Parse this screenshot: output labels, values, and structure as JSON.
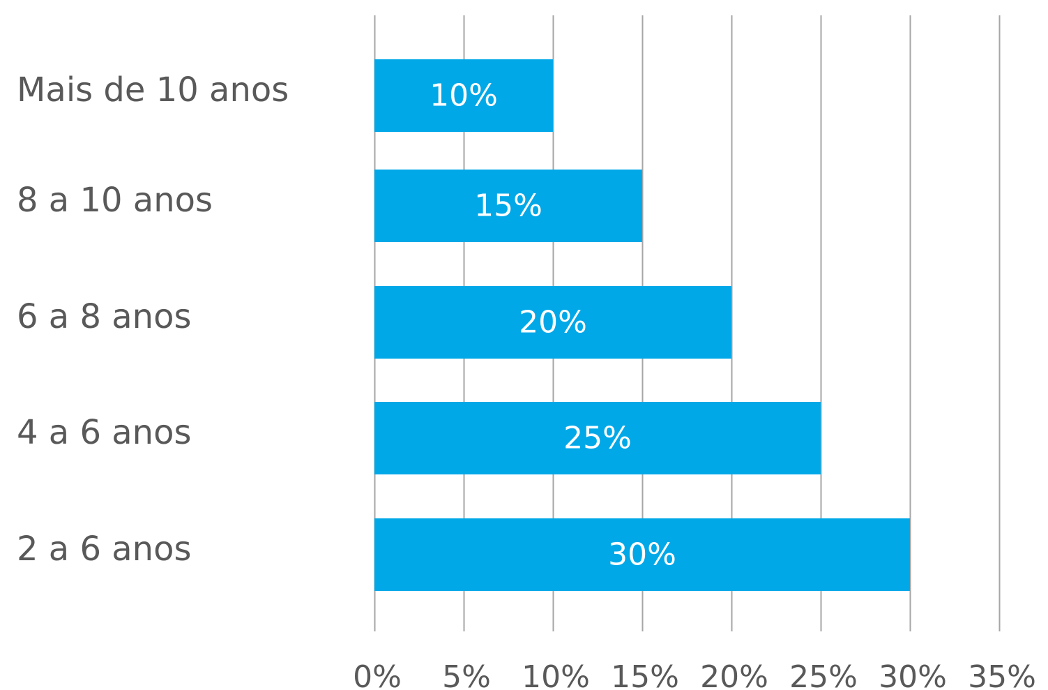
{
  "chart_data": {
    "type": "bar",
    "orientation": "horizontal",
    "categories": [
      "Mais de 10 anos",
      "8 a 10 anos",
      "6 a 8 anos",
      "4 a 6 anos",
      "2 a 6 anos"
    ],
    "values": [
      10,
      15,
      20,
      25,
      30
    ],
    "data_labels": [
      "10%",
      "15%",
      "20%",
      "25%",
      "30%"
    ],
    "xlim": [
      0,
      35
    ],
    "x_ticks": [
      0,
      5,
      10,
      15,
      20,
      25,
      30,
      35
    ],
    "x_tick_labels": [
      "0%",
      "5%",
      "10%",
      "15%",
      "20%",
      "25%",
      "30%",
      "35%"
    ],
    "grid": "vertical",
    "legend": "none",
    "title": "",
    "xlabel": "",
    "ylabel": ""
  },
  "colors": {
    "bar": "#00a8e8",
    "gridline": "#a6a6a6",
    "text": "#595959",
    "data_label": "#ffffff"
  }
}
